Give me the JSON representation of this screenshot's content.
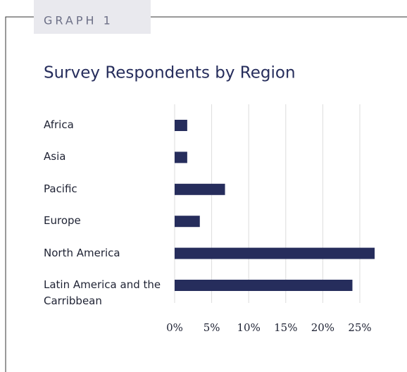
{
  "chart_data": {
    "type": "bar",
    "orientation": "horizontal",
    "label": "GRAPH 1",
    "title": "Survey Respondents by Region",
    "categories": [
      "Africa",
      "Asia",
      "Pacific",
      "Europe",
      "North America",
      "Latin America and the Carribbean"
    ],
    "values": [
      1.7,
      1.7,
      6.8,
      3.4,
      27,
      24
    ],
    "color": "#262d5c",
    "xlim": [
      0,
      25
    ],
    "xticks": [
      {
        "value": 0,
        "label": "0%"
      },
      {
        "value": 5,
        "label": "5%"
      },
      {
        "value": 10,
        "label": "10%"
      },
      {
        "value": 15,
        "label": "15%"
      },
      {
        "value": 20,
        "label": "20%"
      },
      {
        "value": 25,
        "label": "25%"
      }
    ],
    "grid": true
  }
}
